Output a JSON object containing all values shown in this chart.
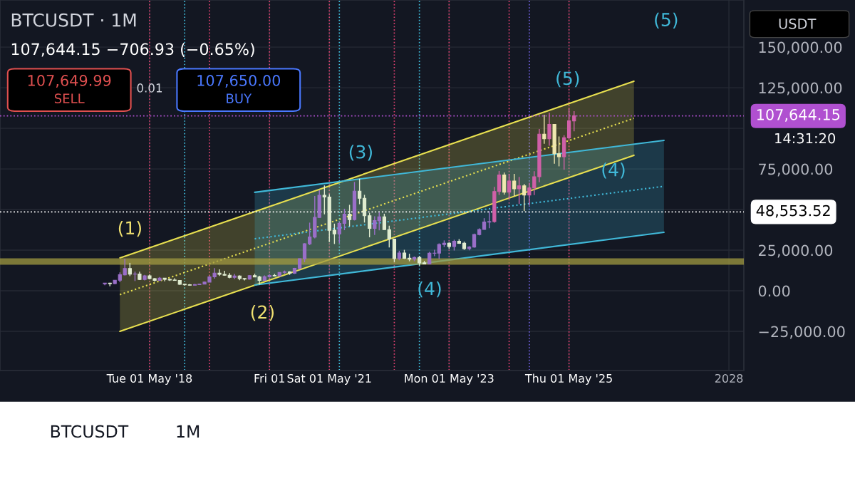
{
  "chart_data": {
    "type": "candlestick",
    "title": "BTCUSDT · 1M",
    "subtitle": "107,644.15 −706.93 (−0.65%)",
    "x": [
      "2017-08",
      "2017-09",
      "2017-10",
      "2017-11",
      "2017-12",
      "2018-01",
      "2018-02",
      "2018-03",
      "2018-04",
      "2018-05",
      "2018-06",
      "2018-07",
      "2018-08",
      "2018-09",
      "2018-10",
      "2018-11",
      "2018-12",
      "2019-01",
      "2019-02",
      "2019-03",
      "2019-04",
      "2019-05",
      "2019-06",
      "2019-07",
      "2019-08",
      "2019-09",
      "2019-10",
      "2019-11",
      "2019-12",
      "2020-01",
      "2020-02",
      "2020-03",
      "2020-04",
      "2020-05",
      "2020-06",
      "2020-07",
      "2020-08",
      "2020-09",
      "2020-10",
      "2020-11",
      "2020-12",
      "2021-01",
      "2021-02",
      "2021-03",
      "2021-04",
      "2021-05",
      "2021-06",
      "2021-07",
      "2021-08",
      "2021-09",
      "2021-10",
      "2021-11",
      "2021-12",
      "2022-01",
      "2022-02",
      "2022-03",
      "2022-04",
      "2022-05",
      "2022-06",
      "2022-07",
      "2022-08",
      "2022-09",
      "2022-10",
      "2022-11",
      "2022-12",
      "2023-01",
      "2023-02",
      "2023-03",
      "2023-04",
      "2023-05",
      "2023-06",
      "2023-07",
      "2023-08",
      "2023-09",
      "2023-10",
      "2023-11",
      "2023-12",
      "2024-01",
      "2024-02",
      "2024-03",
      "2024-04",
      "2024-05",
      "2024-06",
      "2024-07",
      "2024-08",
      "2024-09",
      "2024-10",
      "2024-11",
      "2024-12",
      "2025-01",
      "2025-02",
      "2025-03",
      "2025-04",
      "2025-05",
      "2025-06"
    ],
    "ohlc": [
      [
        4261,
        4745,
        3400,
        4724
      ],
      [
        4689,
        4939,
        2817,
        4378
      ],
      [
        4378,
        6470,
        4110,
        6463
      ],
      [
        6463,
        11300,
        5325,
        9838
      ],
      [
        9838,
        19798,
        9400,
        13716
      ],
      [
        13716,
        17176,
        9035,
        10285
      ],
      [
        10285,
        11786,
        6000,
        10326
      ],
      [
        10325,
        11710,
        6600,
        6923
      ],
      [
        6922,
        9759,
        6430,
        9246
      ],
      [
        9246,
        10020,
        7032,
        7485
      ],
      [
        7485,
        7770,
        5750,
        6391
      ],
      [
        6391,
        8507,
        6070,
        7730
      ],
      [
        7735,
        7750,
        5880,
        7011
      ],
      [
        7011,
        7410,
        6100,
        6626
      ],
      [
        6626,
        7680,
        6180,
        6372
      ],
      [
        6370,
        6552,
        3652,
        4041
      ],
      [
        4041,
        4312,
        3157,
        3702
      ],
      [
        3701,
        4140,
        3349,
        3434
      ],
      [
        3434,
        4200,
        3373,
        3814
      ],
      [
        3814,
        4140,
        3670,
        4103
      ],
      [
        4102,
        5600,
        4030,
        5321
      ],
      [
        5320,
        9074,
        5300,
        8555
      ],
      [
        8555,
        13970,
        7440,
        10854
      ],
      [
        10855,
        13200,
        9071,
        10085
      ],
      [
        10085,
        12325,
        9320,
        9590
      ],
      [
        9589,
        10905,
        7710,
        8289
      ],
      [
        8289,
        10370,
        7300,
        9140
      ],
      [
        9141,
        9505,
        6515,
        7540
      ],
      [
        7541,
        7750,
        6435,
        7195
      ],
      [
        7195,
        9578,
        6871,
        9350
      ],
      [
        9351,
        10500,
        8445,
        8523
      ],
      [
        8523,
        9188,
        3782,
        6410
      ],
      [
        6412,
        9460,
        6150,
        8620
      ],
      [
        8620,
        10080,
        8117,
        9448
      ],
      [
        9448,
        10380,
        8833,
        9138
      ],
      [
        9138,
        11444,
        8893,
        11335
      ],
      [
        11335,
        12468,
        10518,
        11649
      ],
      [
        11650,
        12050,
        9825,
        10776
      ],
      [
        10776,
        14100,
        10375,
        13791
      ],
      [
        13791,
        19863,
        13195,
        19700
      ],
      [
        19700,
        29300,
        17572,
        28923
      ],
      [
        28923,
        41950,
        28130,
        33092
      ],
      [
        33092,
        58352,
        32296,
        45135
      ],
      [
        45134,
        61844,
        44950,
        58740
      ],
      [
        58740,
        64854,
        47044,
        57694
      ],
      [
        57697,
        59500,
        30000,
        37253
      ],
      [
        37253,
        41330,
        28805,
        35045
      ],
      [
        35045,
        42448,
        29278,
        41461
      ],
      [
        41461,
        50500,
        37332,
        47100
      ],
      [
        47100,
        52920,
        39600,
        43824
      ],
      [
        43820,
        67000,
        43283,
        61300
      ],
      [
        61300,
        69000,
        53256,
        56950
      ],
      [
        56950,
        59054,
        42000,
        46216
      ],
      [
        46217,
        47990,
        32917,
        38466
      ],
      [
        38466,
        45821,
        34322,
        43160
      ],
      [
        43160,
        48190,
        37155,
        45510
      ],
      [
        45510,
        47444,
        37578,
        37630
      ],
      [
        37630,
        40023,
        26700,
        31801
      ],
      [
        31801,
        31987,
        17622,
        19942
      ],
      [
        19942,
        24668,
        18782,
        23293
      ],
      [
        23296,
        25211,
        19600,
        20050
      ],
      [
        20048,
        22799,
        18153,
        19422
      ],
      [
        19423,
        21085,
        18190,
        20490
      ],
      [
        20490,
        21480,
        15476,
        17164
      ],
      [
        17165,
        18387,
        16256,
        16542
      ],
      [
        16541,
        23960,
        16499,
        23125
      ],
      [
        23125,
        25250,
        21351,
        23142
      ],
      [
        23142,
        29185,
        19549,
        28465
      ],
      [
        28466,
        31000,
        26942,
        29233
      ],
      [
        29233,
        29820,
        25811,
        27210
      ],
      [
        27211,
        31431,
        24800,
        30472
      ],
      [
        30472,
        31804,
        28861,
        29232
      ],
      [
        29232,
        30244,
        25166,
        25940
      ],
      [
        25940,
        27483,
        24901,
        26963
      ],
      [
        26963,
        35198,
        26539,
        34640
      ],
      [
        34640,
        38450,
        34098,
        37724
      ],
      [
        37724,
        44700,
        37618,
        42284
      ],
      [
        42284,
        48969,
        38555,
        42580
      ],
      [
        42580,
        63913,
        41884,
        61131
      ],
      [
        61131,
        73777,
        59005,
        71280
      ],
      [
        71280,
        72797,
        59191,
        60672
      ],
      [
        60672,
        71979,
        56552,
        67540
      ],
      [
        67540,
        71982,
        58402,
        62772
      ],
      [
        62772,
        70079,
        53485,
        64628
      ],
      [
        64628,
        65660,
        49000,
        58974
      ],
      [
        58974,
        66498,
        52550,
        63328
      ],
      [
        63328,
        73620,
        58946,
        70215
      ],
      [
        70215,
        99588,
        66835,
        96408
      ],
      [
        96408,
        108353,
        90500,
        93576
      ],
      [
        93576,
        109588,
        89256,
        102429
      ],
      [
        102429,
        102500,
        78258,
        84350
      ],
      [
        84350,
        95000,
        76606,
        82550
      ],
      [
        82550,
        95758,
        74508,
        94172
      ],
      [
        94172,
        111980,
        93346,
        104592
      ],
      [
        104592,
        110530,
        98200,
        107644
      ]
    ],
    "colors": [
      "#9a6fc8",
      "#e0ecd0",
      "#9a6fc8",
      "#9a6fc8",
      "#9a6fc8",
      "#e0ecd0",
      "#9a6fc8",
      "#e0ecd0",
      "#9a6fc8",
      "#e0ecd0",
      "#e0ecd0",
      "#9a6fc8",
      "#e0ecd0",
      "#e0ecd0",
      "#e0ecd0",
      "#e0ecd0",
      "#e0ecd0",
      "#e0ecd0",
      "#9a6fc8",
      "#9a6fc8",
      "#9a6fc8",
      "#9a6fc8",
      "#9a6fc8",
      "#e0ecd0",
      "#e0ecd0",
      "#e0ecd0",
      "#9a6fc8",
      "#e0ecd0",
      "#e0ecd0",
      "#9a6fc8",
      "#e0ecd0",
      "#e0ecd0",
      "#9a6fc8",
      "#9a6fc8",
      "#e0ecd0",
      "#9a6fc8",
      "#9a6fc8",
      "#e0ecd0",
      "#9a6fc8",
      "#9a6fc8",
      "#9a6fc8",
      "#9a6fc8",
      "#9a6fc8",
      "#9a6fc8",
      "#e0ecd0",
      "#e0ecd0",
      "#e0ecd0",
      "#9a6fc8",
      "#9a6fc8",
      "#e0ecd0",
      "#9a6fc8",
      "#e0ecd0",
      "#e0ecd0",
      "#e0ecd0",
      "#9a6fc8",
      "#9a6fc8",
      "#e0ecd0",
      "#e0ecd0",
      "#e0ecd0",
      "#9a6fc8",
      "#e0ecd0",
      "#e0ecd0",
      "#9a6fc8",
      "#e0ecd0",
      "#e0ecd0",
      "#9a6fc8",
      "#9a6fc8",
      "#9a6fc8",
      "#9a6fc8",
      "#e0ecd0",
      "#9a6fc8",
      "#e0ecd0",
      "#e0ecd0",
      "#9a6fc8",
      "#9a6fc8",
      "#9a6fc8",
      "#9a6fc8",
      "#9a6fc8",
      "#d060a8",
      "#d060a8",
      "#f0e8b0",
      "#d060a8",
      "#f0e8b0",
      "#d060a8",
      "#f0e8b0",
      "#d060a8",
      "#d060a8",
      "#d060a8",
      "#f0e8b0",
      "#d060a8",
      "#f0e8b0",
      "#f0e8b0",
      "#d060a8",
      "#d060a8",
      "#d060a8"
    ],
    "series": [
      {
        "type": "line",
        "x": [
          "2017-11",
          "2026-06"
        ],
        "values": [
          -2400,
          106200
        ],
        "lower": [
          -25000,
          83400
        ],
        "upper": [
          20200,
          129000
        ],
        "color": "#e8e050",
        "line_style": "dotted"
      },
      {
        "type": "line",
        "x": [
          "2017-11",
          "2026-06"
        ],
        "values": [
          20200,
          129000
        ],
        "color": "#e8e050",
        "line_style": "solid"
      },
      {
        "type": "line",
        "x": [
          "2017-11",
          "2026-06"
        ],
        "values": [
          -25000,
          83400
        ],
        "color": "#e8e050",
        "line_style": "solid"
      },
      {
        "type": "line",
        "x": [
          "2020-02",
          "2026-12"
        ],
        "values": [
          32000,
          64300
        ],
        "lower": [
          3500,
          36000
        ],
        "upper": [
          60600,
          92600
        ],
        "color": "#40b8d8",
        "line_style": "dotted"
      },
      {
        "type": "line",
        "x": [
          "2020-02",
          "2026-12"
        ],
        "values": [
          60600,
          92600
        ],
        "color": "#40b8d8",
        "line_style": "solid"
      },
      {
        "type": "line",
        "x": [
          "2020-02",
          "2026-12"
        ],
        "values": [
          3500,
          36000
        ],
        "color": "#40b8d8",
        "line_style": "solid"
      }
    ],
    "bands": [
      {
        "axis": "y",
        "from": 16000,
        "to": 20000,
        "color": "#a09a40"
      }
    ],
    "ref_lines": [
      {
        "axis": "y",
        "value": 48553.52,
        "label": "48,553.52",
        "color": "#ffffff",
        "line_style": "dotted"
      },
      {
        "axis": "y",
        "value": 107644.15,
        "label": "107,644.15",
        "color": "#b050d0",
        "line_style": "dotted"
      },
      {
        "axis": "x",
        "value": "2018-05",
        "label": null,
        "color": "#e04070",
        "line_style": "dotted"
      },
      {
        "axis": "x",
        "value": "2019-05",
        "label": null,
        "color": "#e04070",
        "line_style": "dotted"
      },
      {
        "axis": "x",
        "value": "2020-05",
        "label": null,
        "color": "#e04070",
        "line_style": "dotted"
      },
      {
        "axis": "x",
        "value": "2021-05",
        "label": null,
        "color": "#e04070",
        "line_style": "dotted"
      },
      {
        "axis": "x",
        "value": "2022-06",
        "label": null,
        "color": "#e04070",
        "line_style": "dotted"
      },
      {
        "axis": "x",
        "value": "2023-05",
        "label": null,
        "color": "#e04070",
        "line_style": "dotted"
      },
      {
        "axis": "x",
        "value": "2024-05",
        "label": null,
        "color": "#e04070",
        "line_style": "dotted"
      },
      {
        "axis": "x",
        "value": "2025-05",
        "label": null,
        "color": "#e04070",
        "line_style": "dotted"
      },
      {
        "axis": "x",
        "value": "2018-12",
        "label": null,
        "color": "#40c0e0",
        "line_style": "dotted"
      },
      {
        "axis": "x",
        "value": "2021-07",
        "label": null,
        "color": "#40c0e0",
        "line_style": "dotted"
      },
      {
        "axis": "x",
        "value": "2022-11",
        "label": null,
        "color": "#40c0e0",
        "line_style": "dotted"
      },
      {
        "axis": "x",
        "value": "2024-09",
        "label": null,
        "color": "#7060e0",
        "line_style": "dotted"
      }
    ],
    "annotations": [
      "(1)",
      "(2)",
      "(3)",
      "(4)",
      "(5)",
      "(4)",
      "(5)",
      "107,649.99",
      "SELL",
      "0.01",
      "107,650.00",
      "BUY",
      "USDT",
      "14:31:20",
      "BTCUSDT",
      "1M"
    ],
    "xlim": [
      "2015-11",
      "2028-04"
    ],
    "xticks": [
      {
        "value": "2018-05",
        "label": "Tue 01 May '18"
      },
      {
        "value": "2020-05",
        "label": "Fri 01"
      },
      {
        "value": "2021-05",
        "label": "Sat 01 May '21"
      },
      {
        "value": "2023-05",
        "label": "Mon 01 May '23"
      },
      {
        "value": "2025-05",
        "label": "Thu 01 May '25"
      },
      {
        "value": "2028-01",
        "label": "2028"
      }
    ],
    "ylim": [
      -49000,
      179000
    ],
    "yticks": [
      {
        "value": -25000,
        "label": "−25,000.00"
      },
      {
        "value": 0,
        "label": "0.00"
      },
      {
        "value": 25000,
        "label": "25,000.00"
      },
      {
        "value": 50000,
        "label": null
      },
      {
        "value": 75000,
        "label": "75,000.00"
      },
      {
        "value": 100000,
        "label": null
      },
      {
        "value": 125000,
        "label": "125,000.00"
      },
      {
        "value": 150000,
        "label": "150,000.00"
      }
    ],
    "grid": true
  }
}
